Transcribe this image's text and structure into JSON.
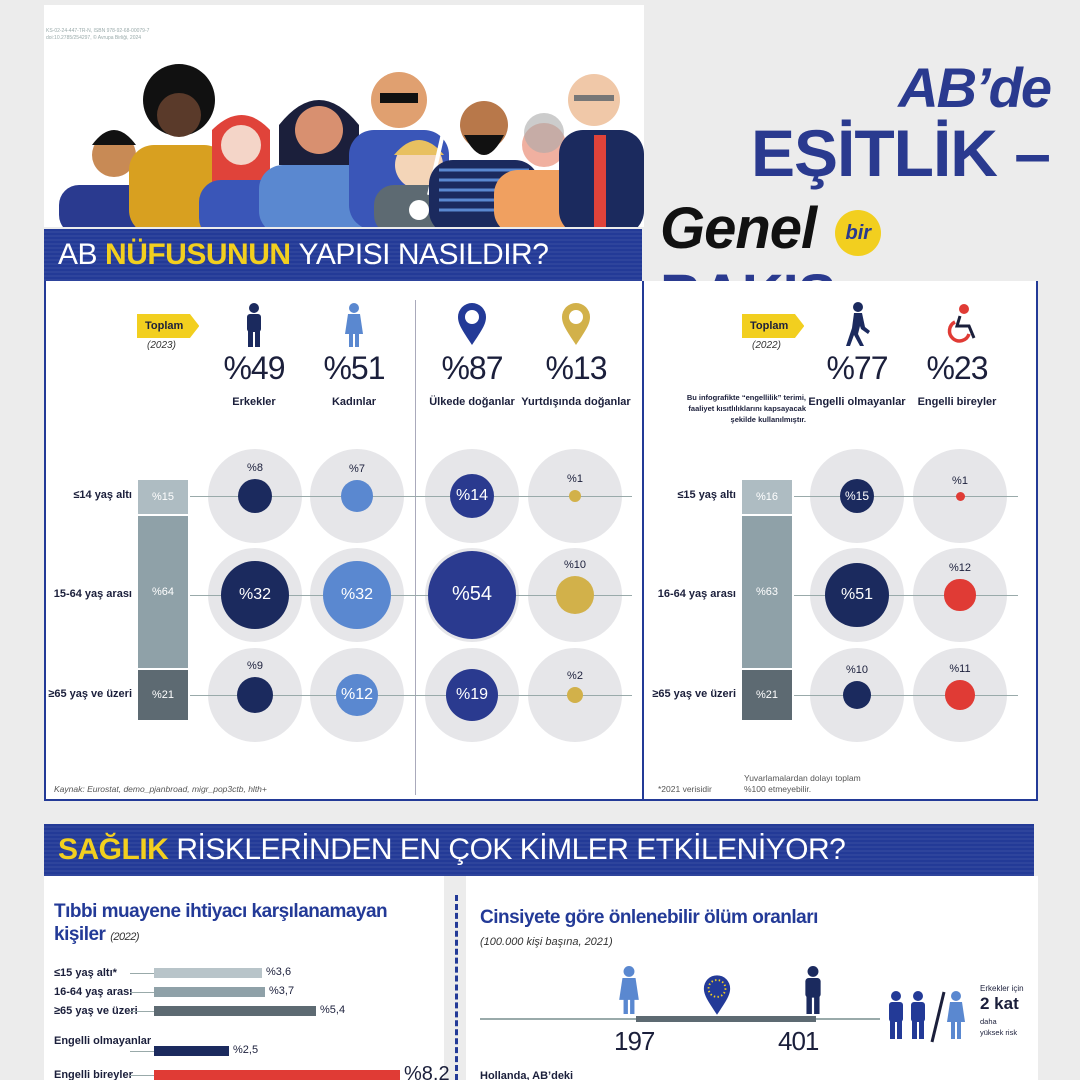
{
  "colors": {
    "navy": "#1b2a5e",
    "blue": "#2a3a8f",
    "light_blue": "#5a88d0",
    "gold": "#d2b14a",
    "red": "#e03b35",
    "gray_bar": "#8fa1a8",
    "yellow": "#f2cf1f"
  },
  "meta": {
    "tiny": "KS-02-24-447-TR-N, ISBN 978-92-68-00079-7 doi:10.2785/254297, © Avrupa Birliği, 2024"
  },
  "title": {
    "line1": "AB’de",
    "line2": "EŞİTLİK –",
    "line3_a": "Genel",
    "line3_bir": "bir",
    "line3_b": "BAKIŞ"
  },
  "section1": {
    "bold": "NÜFUSUNUN",
    "prefix": "AB",
    "rest": "YAPISI NASILDIR?"
  },
  "section2": {
    "bold": "SAĞLIK",
    "rest": "RİSKLERİNDEN EN ÇOK KİMLER ETKİLENİYOR?"
  },
  "left_panel": {
    "badge": "Toplam",
    "year": "(2023)",
    "groups": [
      {
        "pct": "%49",
        "label": "Erkekler",
        "icon": "man-icon"
      },
      {
        "pct": "%51",
        "label": "Kadınlar",
        "icon": "woman-icon"
      },
      {
        "pct": "%87",
        "label": "Ülkede doğanlar",
        "icon": "location-pin-icon"
      },
      {
        "pct": "%13",
        "label": "Yurtdışında doğanlar",
        "icon": "location-pin-icon"
      }
    ],
    "rows": [
      {
        "label": "≤14 yaş altı",
        "total": "%15",
        "values": [
          "%8",
          "%7",
          "%14",
          "%1"
        ]
      },
      {
        "label": "15-64 yaş arası",
        "total": "%64",
        "values": [
          "%32",
          "%32",
          "%54",
          "%10"
        ]
      },
      {
        "label": "≥65 yaş ve üzeri",
        "total": "%21",
        "values": [
          "%9",
          "%12",
          "%19",
          "%2"
        ]
      }
    ],
    "source": "Kaynak: Eurostat, demo_pjanbroad, migr_pop3ctb, hlth+"
  },
  "right_panel": {
    "badge": "Toplam",
    "year": "(2022)",
    "note": "Bu infografikte “engellilik” terimi, faaliyet kısıtlılıklarını kapsayacak şekilde kullanılmıştır.",
    "groups": [
      {
        "pct": "%77",
        "label": "Engelli olmayanlar",
        "icon": "walking-person-icon"
      },
      {
        "pct": "%23",
        "label": "Engelli bireyler",
        "icon": "wheelchair-icon"
      }
    ],
    "rows": [
      {
        "label": "≤15 yaş altı",
        "total": "%16",
        "values": [
          "%15",
          "%1"
        ]
      },
      {
        "label": "16-64 yaş arası",
        "total": "%63",
        "values": [
          "%51",
          "%12"
        ]
      },
      {
        "label": "≥65 yaş ve üzeri",
        "total": "%21",
        "values": [
          "%10",
          "%11"
        ]
      }
    ],
    "footnote1": "*2021 verisidir",
    "footnote2": "Yuvarlamalardan dolayı toplam %100 etmeyebilir."
  },
  "health_left": {
    "title": "Tıbbi muayene ihtiyacı karşılanamayan kişiler",
    "year": "(2022)",
    "bars": [
      {
        "label": "≤15 yaş altı*",
        "value": "%3,6",
        "num": 3.6
      },
      {
        "label": "16-64 yaş arası",
        "value": "%3,7",
        "num": 3.7
      },
      {
        "label": "≥65 yaş ve üzeri",
        "value": "%5,4",
        "num": 5.4
      },
      {
        "label": "Engelli olmayanlar",
        "value": "%2,5",
        "num": 2.5
      },
      {
        "label": "Engelli bireyler",
        "value": "%8,2",
        "num": 8.2
      }
    ]
  },
  "health_right": {
    "title": "Cinsiyete göre önlenebilir ölüm oranları",
    "sub": "(100.000 kişi başına, 2021)",
    "women": "197",
    "men": "401",
    "side_top": "Erkekler için",
    "side_big": "2 kat",
    "side_rest": "daha yüksek risk",
    "next_label": "Hollanda, AB’deki"
  }
}
